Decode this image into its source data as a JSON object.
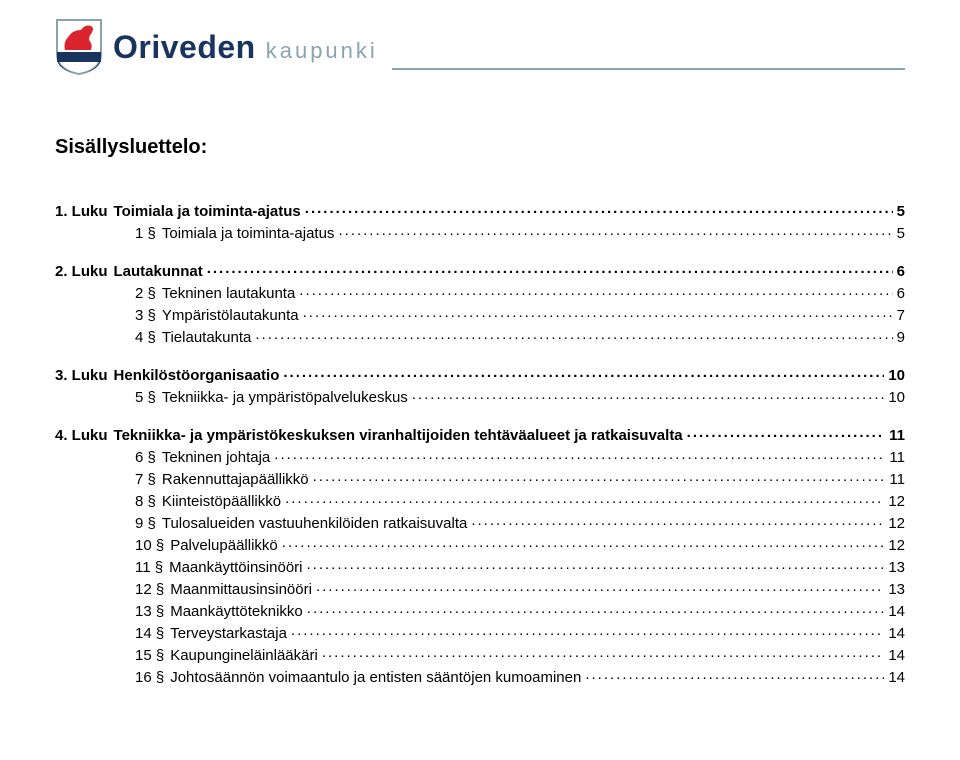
{
  "brand": {
    "primary": "Oriveden",
    "secondary": "kaupunki"
  },
  "logo": {
    "shield_fill": "#ffffff",
    "shield_stroke": "#8aa3b2",
    "horse_fill": "#d9242e",
    "bar_fill": "#18345f"
  },
  "title": "Sisällysluettelo:",
  "toc": [
    {
      "indent": 1,
      "num": "1. Luku",
      "label": "Toimiala ja toiminta-ajatus",
      "page": "5",
      "bold": true,
      "leader": true,
      "blank_before": false
    },
    {
      "indent": 2,
      "num": "1 §",
      "label": "Toimiala ja toiminta-ajatus",
      "page": "5",
      "bold": false,
      "leader": true,
      "blank_before": false
    },
    {
      "indent": 1,
      "num": "2. Luku",
      "label": "Lautakunnat",
      "page": "6",
      "bold": true,
      "leader": true,
      "blank_before": true
    },
    {
      "indent": 2,
      "num": "2 §",
      "label": "Tekninen lautakunta",
      "page": "6",
      "bold": false,
      "leader": true,
      "blank_before": false
    },
    {
      "indent": 2,
      "num": "3 §",
      "label": "Ympäristölautakunta",
      "page": "7",
      "bold": false,
      "leader": true,
      "blank_before": false
    },
    {
      "indent": 2,
      "num": "4 §",
      "label": "Tielautakunta",
      "page": "9",
      "bold": false,
      "leader": true,
      "blank_before": false
    },
    {
      "indent": 1,
      "num": "3. Luku",
      "label": "Henkilöstöorganisaatio",
      "page": "10",
      "bold": true,
      "leader": true,
      "blank_before": true
    },
    {
      "indent": 2,
      "num": "5 §",
      "label": "Tekniikka- ja ympäristöpalvelukeskus",
      "page": "10",
      "bold": false,
      "leader": true,
      "blank_before": false
    },
    {
      "indent": 1,
      "num": "4. Luku",
      "label": "Tekniikka- ja ympäristökeskuksen viranhaltijoiden tehtäväalueet ja ratkaisuvalta",
      "page": "11",
      "bold": true,
      "leader": true,
      "blank_before": true
    },
    {
      "indent": 2,
      "num": "6 §",
      "label": "Tekninen johtaja",
      "page": "11",
      "bold": false,
      "leader": true,
      "blank_before": false
    },
    {
      "indent": 2,
      "num": "7 §",
      "label": "Rakennuttajapäällikkö",
      "page": "11",
      "bold": false,
      "leader": true,
      "blank_before": false
    },
    {
      "indent": 2,
      "num": "8 §",
      "label": "Kiinteistöpäällikkö",
      "page": "12",
      "bold": false,
      "leader": true,
      "blank_before": false
    },
    {
      "indent": 2,
      "num": "9 §",
      "label": "Tulosalueiden vastuuhenkilöiden ratkaisuvalta",
      "page": "12",
      "bold": false,
      "leader": true,
      "blank_before": false
    },
    {
      "indent": 2,
      "num": "10 §",
      "label": "Palvelupäällikkö",
      "page": "12",
      "bold": false,
      "leader": true,
      "blank_before": false
    },
    {
      "indent": 2,
      "num": "11 §",
      "label": "Maankäyttöinsinööri",
      "page": "13",
      "bold": false,
      "leader": true,
      "blank_before": false
    },
    {
      "indent": 2,
      "num": "12 §",
      "label": "Maanmittausinsinööri",
      "page": "13",
      "bold": false,
      "leader": true,
      "blank_before": false
    },
    {
      "indent": 2,
      "num": "13 §",
      "label": "Maankäyttöteknikko",
      "page": "14",
      "bold": false,
      "leader": true,
      "blank_before": false
    },
    {
      "indent": 2,
      "num": "14 §",
      "label": "Terveystarkastaja",
      "page": "14",
      "bold": false,
      "leader": true,
      "blank_before": false
    },
    {
      "indent": 2,
      "num": "15 §",
      "label": "Kaupungineläinlääkäri",
      "page": "14",
      "bold": false,
      "leader": true,
      "blank_before": false
    },
    {
      "indent": 2,
      "num": "16 §",
      "label": "Johtosäännön voimaantulo ja entisten sääntöjen kumoaminen",
      "page": "14",
      "bold": false,
      "leader": true,
      "blank_before": false
    }
  ]
}
